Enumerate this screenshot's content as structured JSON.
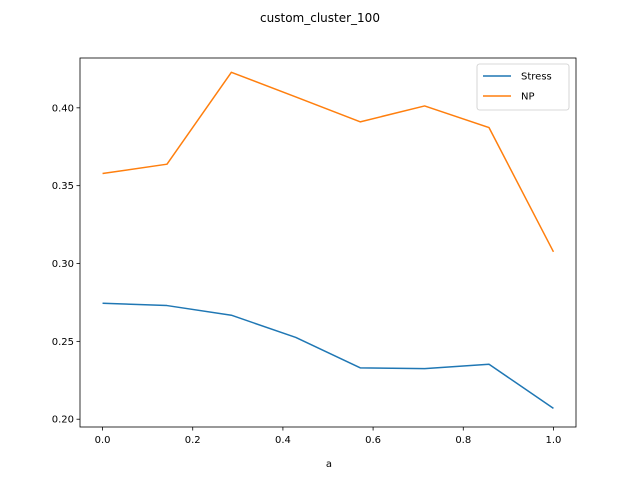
{
  "chart_data": {
    "type": "line",
    "title": "custom_cluster_100",
    "xlabel": "a",
    "ylabel": "",
    "xlim": [
      -0.05,
      1.05
    ],
    "ylim": [
      0.195,
      0.432
    ],
    "xticks": [
      0.0,
      0.2,
      0.4,
      0.6,
      0.8,
      1.0
    ],
    "xtick_labels": [
      "0.0",
      "0.2",
      "0.4",
      "0.6",
      "0.8",
      "1.0"
    ],
    "yticks": [
      0.2,
      0.25,
      0.3,
      0.35,
      0.4
    ],
    "ytick_labels": [
      "0.20",
      "0.25",
      "0.30",
      "0.35",
      "0.40"
    ],
    "grid": false,
    "legend_position": "top-right",
    "x": [
      0.0,
      0.1429,
      0.2857,
      0.4286,
      0.5714,
      0.7143,
      0.8571,
      1.0
    ],
    "series": [
      {
        "name": "Stress",
        "color": "#1f77b4",
        "values": [
          0.2745,
          0.273,
          0.2668,
          0.2525,
          0.233,
          0.2325,
          0.2353,
          0.207
        ]
      },
      {
        "name": "NP",
        "color": "#ff7f0e",
        "values": [
          0.3578,
          0.3638,
          0.4228,
          0.407,
          0.391,
          0.4012,
          0.3873,
          0.3075
        ]
      }
    ]
  }
}
